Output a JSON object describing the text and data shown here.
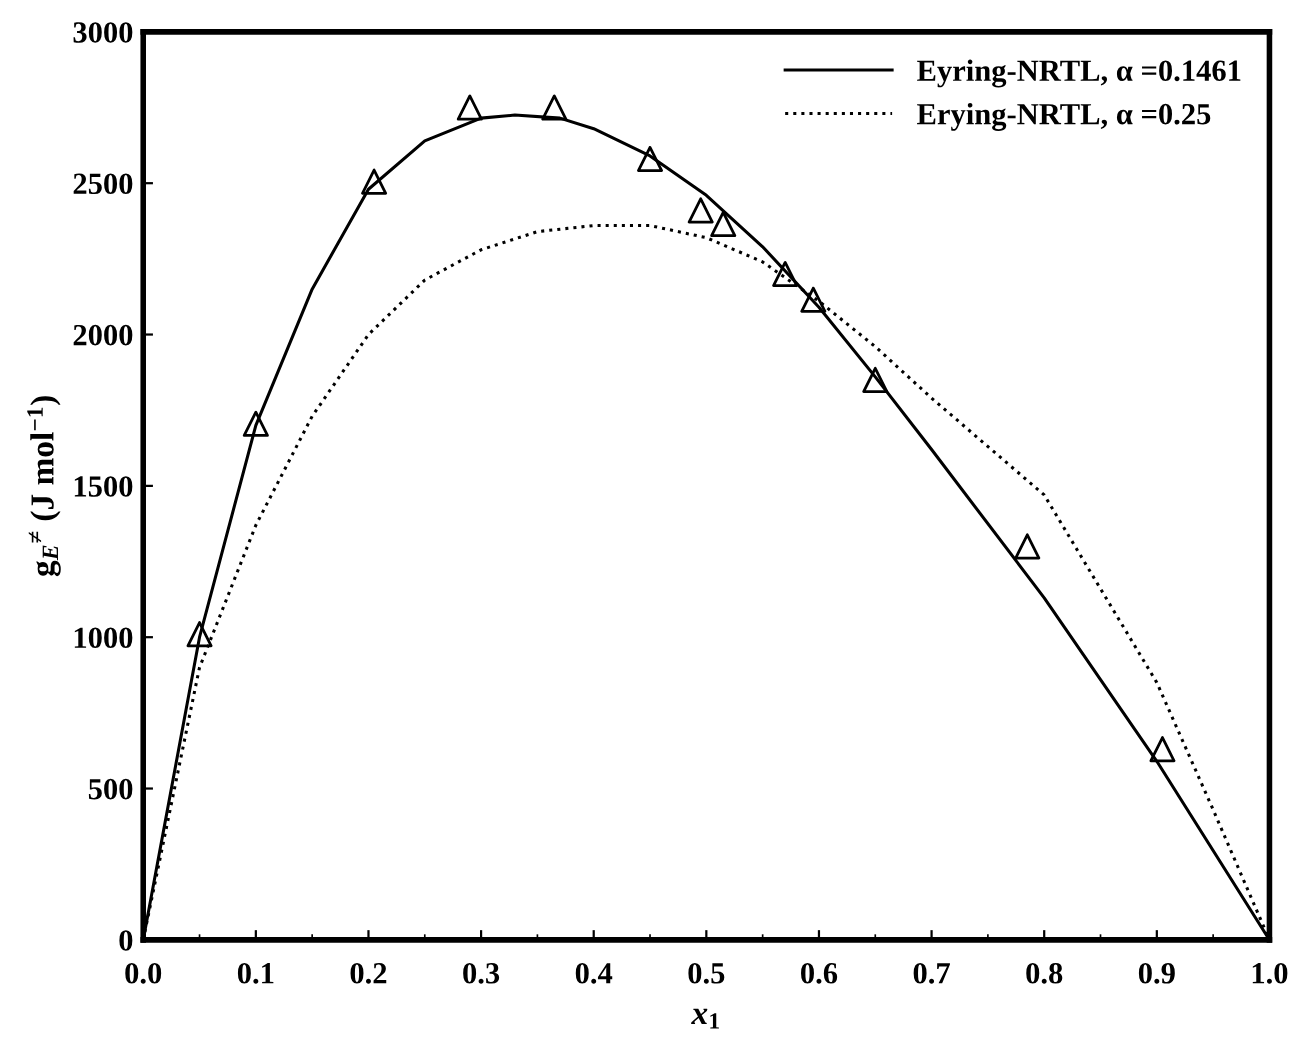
{
  "chart_data": {
    "type": "line",
    "xlabel": "x$_{1}$",
    "ylabel": "g$_{E}$$^{≠}$ (J mol$^{−1}$)",
    "xlim": [
      0.0,
      1.0
    ],
    "xticks": [
      {
        "value": 0,
        "label": "0.0"
      },
      0.1,
      0.2,
      0.3,
      0.4,
      0.5,
      0.6,
      0.7,
      0.8,
      0.9,
      {
        "value": 1,
        "label": "1.0"
      }
    ],
    "ylim": [
      0,
      3000
    ],
    "yticks": [
      0,
      500,
      1000,
      1500,
      2000,
      2500,
      3000
    ],
    "grid": false,
    "legend": "top right",
    "series": [
      {
        "name": "Eyring-NRTL, α =0.1461",
        "color": "#000000",
        "line_style": "solid",
        "marker": "none",
        "x": [
          0,
          0.05,
          0.1,
          0.15,
          0.2,
          0.25,
          0.3,
          0.33,
          0.37,
          0.4,
          0.45,
          0.5,
          0.55,
          0.6,
          0.65,
          0.7,
          0.8,
          0.9,
          1.0
        ],
        "values": [
          0,
          1000,
          1700,
          2150,
          2480,
          2640,
          2715,
          2725,
          2715,
          2680,
          2590,
          2460,
          2290,
          2090,
          1860,
          1620,
          1130,
          590,
          0
        ]
      },
      {
        "name": "Erying-NRTL, α =0.25",
        "color": "#000000",
        "line_style": "dotted",
        "marker": "none",
        "x": [
          0,
          0.05,
          0.1,
          0.15,
          0.2,
          0.25,
          0.3,
          0.35,
          0.4,
          0.45,
          0.5,
          0.55,
          0.6,
          0.65,
          0.7,
          0.8,
          0.9,
          0.95,
          1.0
        ],
        "values": [
          0,
          900,
          1370,
          1730,
          2000,
          2180,
          2280,
          2340,
          2360,
          2360,
          2320,
          2240,
          2110,
          1960,
          1790,
          1470,
          850,
          430,
          0
        ]
      },
      {
        "color": "#000000",
        "type": "scatter",
        "marker": "triangle",
        "x": [
          0.05,
          0.1,
          0.205,
          0.29,
          0.365,
          0.45,
          0.495,
          0.515,
          0.57,
          0.595,
          0.65,
          0.785,
          0.905
        ],
        "values": [
          1010,
          1705,
          2505,
          2750,
          2750,
          2580,
          2410,
          2365,
          2200,
          2115,
          1850,
          1300,
          630
        ]
      }
    ]
  }
}
